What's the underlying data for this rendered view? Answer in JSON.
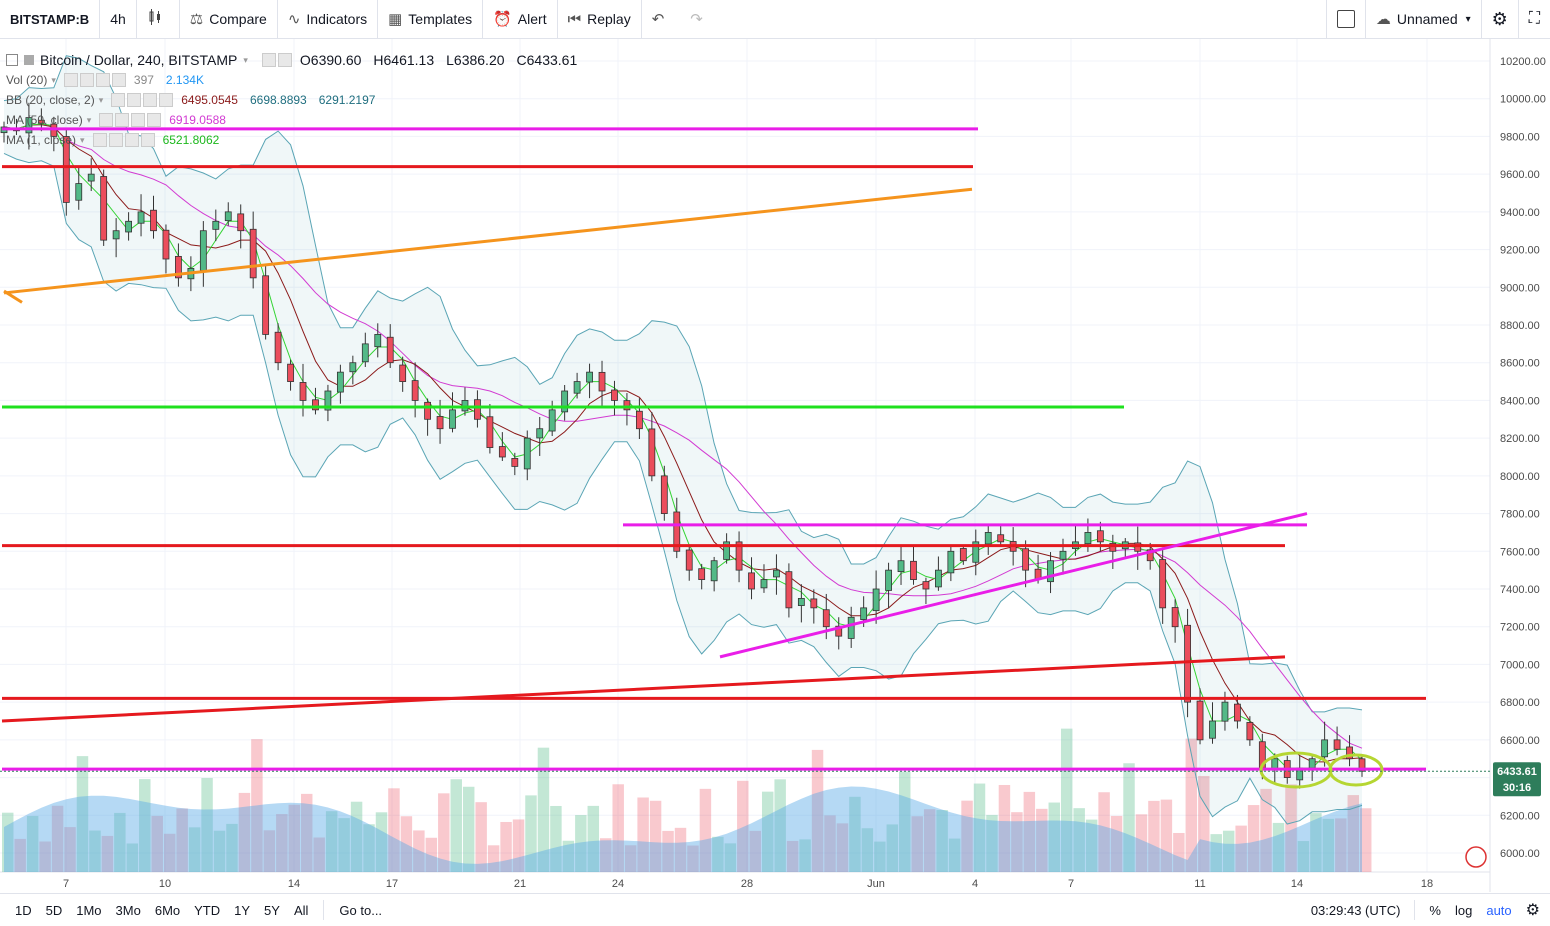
{
  "toolbar": {
    "symbol": "BITSTAMP:B",
    "interval": "4h",
    "compare": "Compare",
    "indicators": "Indicators",
    "templates": "Templates",
    "alert": "Alert",
    "replay": "Replay",
    "layout_name": "Unnamed"
  },
  "legend": {
    "title": "Bitcoin / Dollar, 240, BITSTAMP",
    "open": "O6390.60",
    "high": "H6461.13",
    "low": "L6386.20",
    "close": "C6433.61",
    "vol_label": "Vol (20)",
    "vol_values": [
      "397",
      "2.134K"
    ],
    "bb_label": "BB (20, close, 2)",
    "bb_values": [
      "6495.0545",
      "6698.8893",
      "6291.2197"
    ],
    "ma50_label": "MA (50, close)",
    "ma50_value": "6919.0588",
    "ma_label": "MA (1, close)",
    "ma_value": "6521.8062"
  },
  "price_axis": {
    "ticks": [
      "10200.00",
      "10000.00",
      "9800.00",
      "9600.00",
      "9400.00",
      "9200.00",
      "9000.00",
      "8800.00",
      "8600.00",
      "8400.00",
      "8200.00",
      "8000.00",
      "7800.00",
      "7600.00",
      "7400.00",
      "7200.00",
      "7000.00",
      "6800.00",
      "6600.00",
      "6400.00",
      "6200.00",
      "6000.00"
    ],
    "last_price": "6433.61",
    "countdown": "30:16"
  },
  "time_axis": {
    "labels": [
      "7",
      "10",
      "14",
      "17",
      "21",
      "24",
      "28",
      "Jun",
      "4",
      "7",
      "11",
      "14",
      "18"
    ]
  },
  "bottom": {
    "ranges": [
      "1D",
      "5D",
      "1Mo",
      "3Mo",
      "6Mo",
      "YTD",
      "1Y",
      "5Y",
      "All"
    ],
    "goto": "Go to...",
    "clock": "03:29:43 (UTC)",
    "percent": "%",
    "log": "log",
    "auto": "auto"
  },
  "colors": {
    "up": "#53b987",
    "down": "#eb4d5c",
    "magenta": "#e91ee8",
    "red": "#e5191e",
    "green": "#1fe01f",
    "orange": "#f5941d",
    "yellowgreen": "#b5d632",
    "bb_band": "#5aa5b5",
    "ma_red": "#8b1a1a",
    "ma_magenta": "#d23bd2",
    "ma_green": "#33d433",
    "last_price_bg": "#2e7d5b"
  },
  "chart_data": {
    "type": "candlestick",
    "symbol": "Bitcoin / Dollar, 240, BITSTAMP",
    "ylim": [
      5900,
      10250
    ],
    "x_labels": [
      "7",
      "10",
      "14",
      "17",
      "21",
      "24",
      "28",
      "Jun",
      "4",
      "7",
      "11",
      "14",
      "18"
    ],
    "closes": [
      9850,
      9830,
      9900,
      9870,
      9800,
      9450,
      9550,
      9600,
      9250,
      9300,
      9350,
      9400,
      9300,
      9150,
      9050,
      9100,
      9300,
      9350,
      9400,
      9300,
      9050,
      8750,
      8600,
      8500,
      8400,
      8350,
      8450,
      8550,
      8600,
      8700,
      8750,
      8600,
      8500,
      8400,
      8300,
      8250,
      8350,
      8400,
      8300,
      8150,
      8100,
      8050,
      8200,
      8250,
      8350,
      8450,
      8500,
      8550,
      8450,
      8400,
      8350,
      8250,
      8000,
      7800,
      7600,
      7500,
      7450,
      7550,
      7650,
      7500,
      7400,
      7450,
      7500,
      7300,
      7350,
      7300,
      7200,
      7150,
      7250,
      7300,
      7400,
      7500,
      7550,
      7450,
      7400,
      7500,
      7600,
      7550,
      7650,
      7700,
      7650,
      7600,
      7500,
      7450,
      7550,
      7600,
      7650,
      7700,
      7650,
      7600,
      7650,
      7600,
      7550,
      7300,
      7200,
      6800,
      6600,
      6700,
      6800,
      6700,
      6600,
      6450,
      6500,
      6400,
      6450,
      6500,
      6600,
      6550,
      6500,
      6433.61
    ],
    "horizontal_lines": [
      {
        "price": 9840,
        "color": "magenta"
      },
      {
        "price": 9640,
        "color": "red"
      },
      {
        "price": 8365,
        "color": "green"
      },
      {
        "price": 7740,
        "color": "magenta"
      },
      {
        "price": 7630,
        "color": "red"
      },
      {
        "price": 6820,
        "color": "red"
      },
      {
        "price": 6445,
        "color": "magenta"
      }
    ]
  }
}
